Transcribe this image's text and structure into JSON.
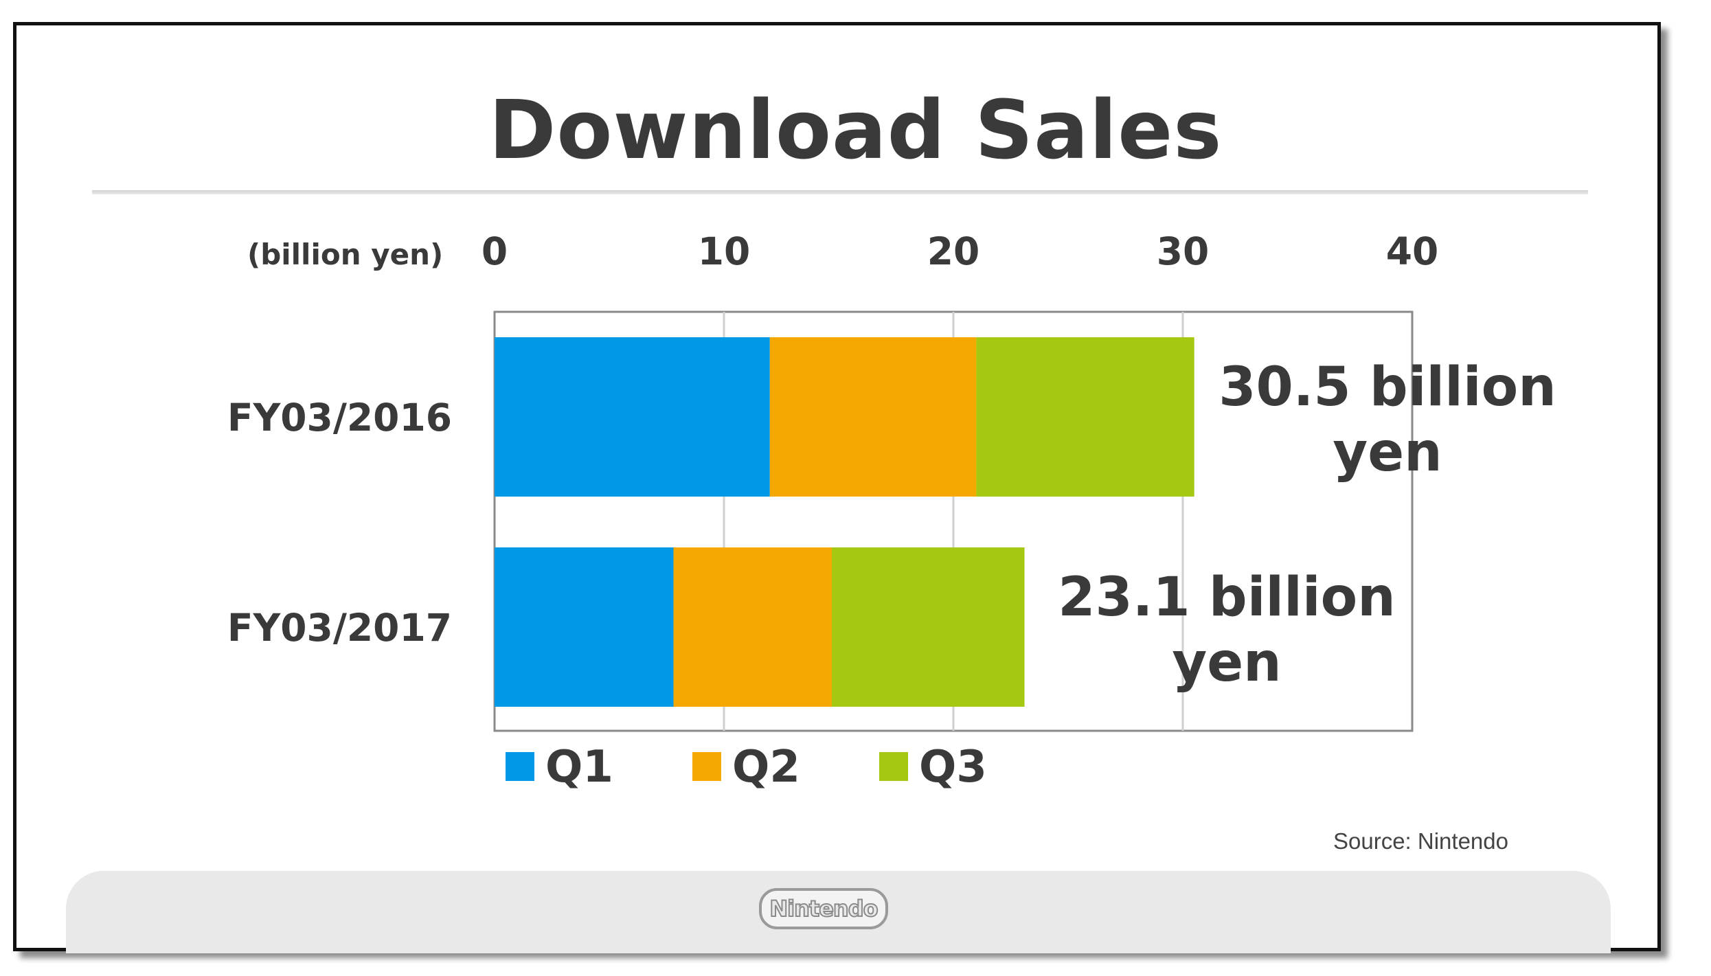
{
  "title": "Download Sales",
  "source": "Source: Nintendo",
  "logo_text": "Nintendo",
  "chart_data": {
    "type": "bar",
    "orientation": "horizontal",
    "stacked": true,
    "unit_label": "(billion yen)",
    "categories": [
      "FY03/2016",
      "FY03/2017"
    ],
    "series": [
      {
        "name": "Q1",
        "color": "#0099e6",
        "values": [
          12.0,
          7.8
        ]
      },
      {
        "name": "Q2",
        "color": "#f5a800",
        "values": [
          9.0,
          6.9
        ]
      },
      {
        "name": "Q3",
        "color": "#a5c810",
        "values": [
          9.5,
          8.4
        ]
      }
    ],
    "totals_labels": [
      "30.5 billion yen",
      "23.1 billion yen"
    ],
    "xlim": [
      0,
      40
    ],
    "xticks": [
      0,
      10,
      20,
      30,
      40
    ],
    "grid": true,
    "legend_position": "bottom"
  }
}
